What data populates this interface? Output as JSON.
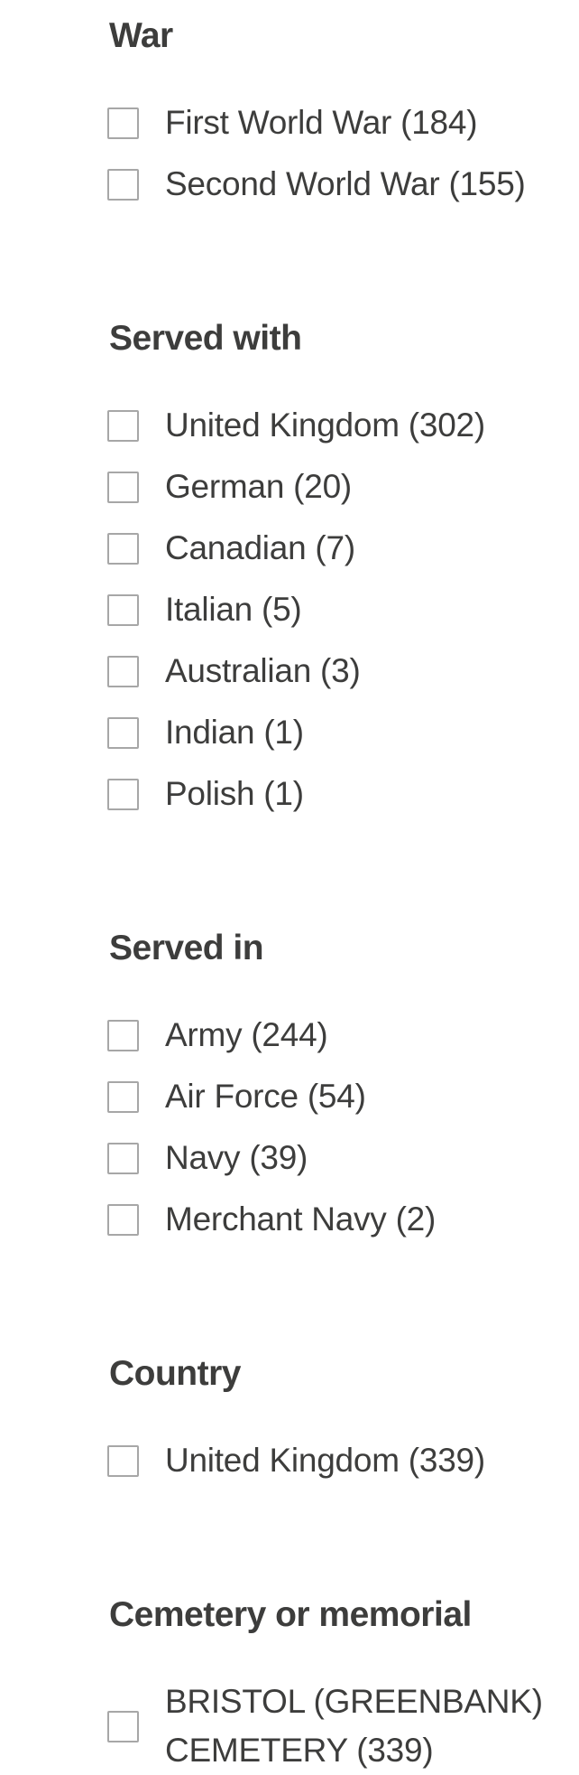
{
  "theme": {
    "background_color": "#ffffff",
    "text_color": "#3d3d3c",
    "checkbox_border_color": "#a7a7a7"
  },
  "filter_panel": {
    "sections": [
      {
        "title": "War",
        "options": [
          {
            "label": "First World War (184)",
            "name": "First World War",
            "count": 184,
            "checked": false
          },
          {
            "label": "Second World War (155)",
            "name": "Second World War",
            "count": 155,
            "checked": false
          }
        ]
      },
      {
        "title": "Served with",
        "options": [
          {
            "label": "United Kingdom (302)",
            "name": "United Kingdom",
            "count": 302,
            "checked": false
          },
          {
            "label": "German (20)",
            "name": "German",
            "count": 20,
            "checked": false
          },
          {
            "label": "Canadian (7)",
            "name": "Canadian",
            "count": 7,
            "checked": false
          },
          {
            "label": "Italian (5)",
            "name": "Italian",
            "count": 5,
            "checked": false
          },
          {
            "label": "Australian (3)",
            "name": "Australian",
            "count": 3,
            "checked": false
          },
          {
            "label": "Indian (1)",
            "name": "Indian",
            "count": 1,
            "checked": false
          },
          {
            "label": "Polish (1)",
            "name": "Polish",
            "count": 1,
            "checked": false
          }
        ]
      },
      {
        "title": "Served in",
        "options": [
          {
            "label": "Army (244)",
            "name": "Army",
            "count": 244,
            "checked": false
          },
          {
            "label": "Air Force (54)",
            "name": "Air Force",
            "count": 54,
            "checked": false
          },
          {
            "label": "Navy (39)",
            "name": "Navy",
            "count": 39,
            "checked": false
          },
          {
            "label": "Merchant Navy (2)",
            "name": "Merchant Navy",
            "count": 2,
            "checked": false
          }
        ]
      },
      {
        "title": "Country",
        "options": [
          {
            "label": "United Kingdom (339)",
            "name": "United Kingdom",
            "count": 339,
            "checked": false
          }
        ]
      },
      {
        "title": "Cemetery or memorial",
        "options": [
          {
            "label": "BRISTOL (GREENBANK) CEMETERY (339)",
            "name": "BRISTOL (GREENBANK) CEMETERY",
            "count": 339,
            "checked": false
          }
        ]
      }
    ]
  }
}
